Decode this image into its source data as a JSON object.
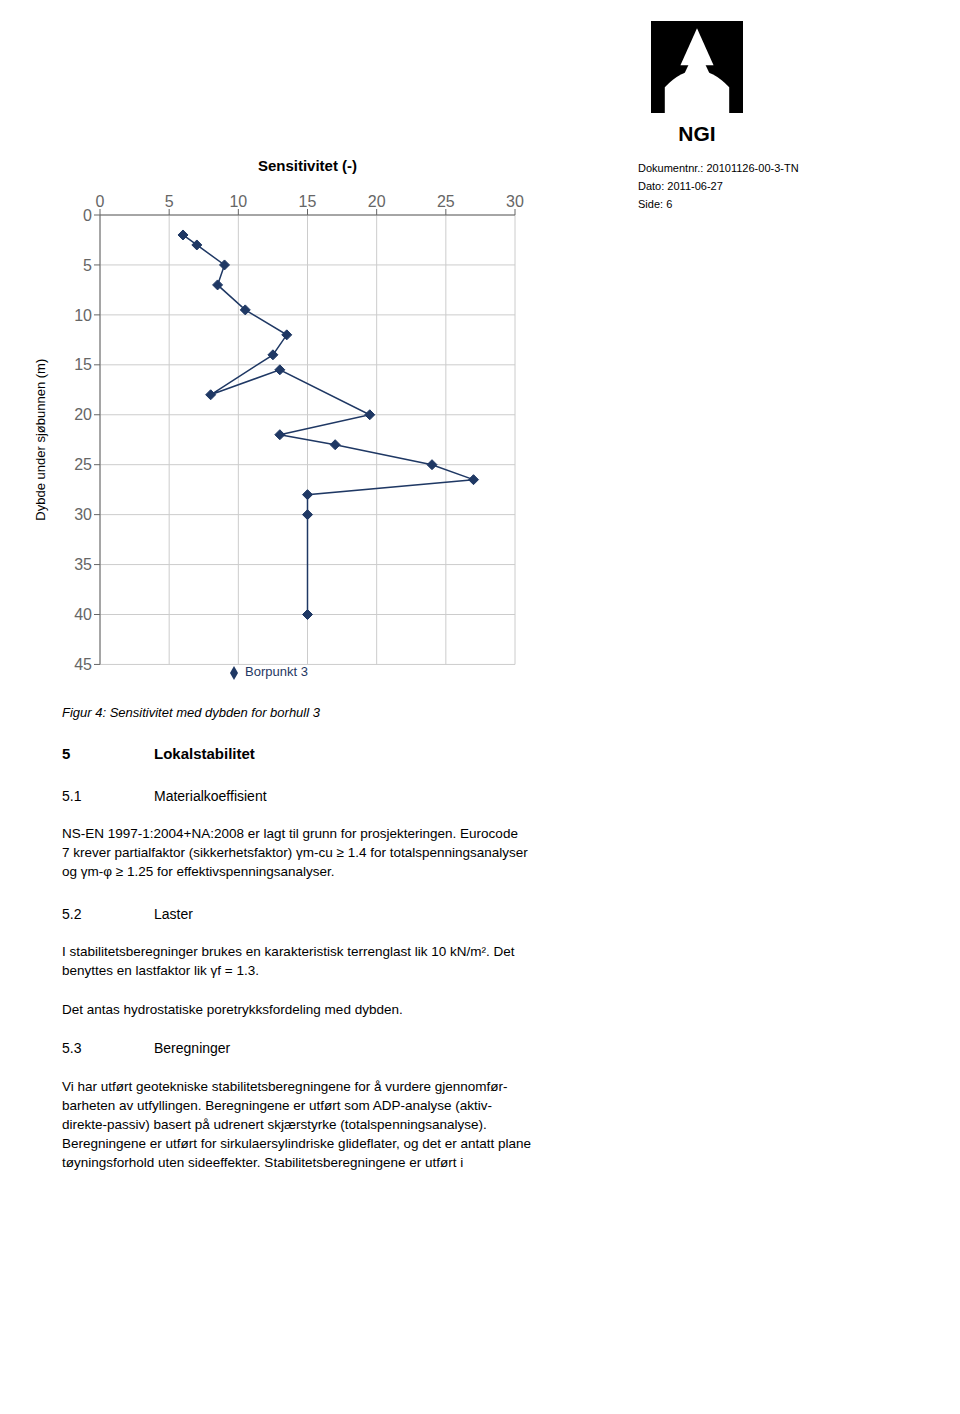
{
  "chart_data": {
    "type": "line",
    "x_label": "Sensitivitet  (-)",
    "y_label": "Dybde under sjøbunnen (m)",
    "xlim": [
      0,
      30
    ],
    "ylim": [
      45,
      0
    ],
    "xticks": [
      0,
      5,
      10,
      15,
      20,
      25,
      30
    ],
    "yticks": [
      0,
      5,
      10,
      15,
      20,
      25,
      30,
      35,
      40,
      45
    ],
    "grid": true,
    "legend": "bottom",
    "series": [
      {
        "name": "Borpunkt 3",
        "color": "#1F3864",
        "marker": "diamond",
        "x": [
          6.0,
          7.0,
          9.0,
          8.5,
          10.5,
          13.5,
          12.5,
          8.0,
          13.0,
          19.5,
          13.0,
          17.0,
          24.0,
          27.0,
          15.0,
          15.0,
          15.0
        ],
        "values": [
          2.0,
          3.0,
          5.0,
          7.0,
          9.5,
          12.0,
          14.0,
          18.0,
          15.5,
          20.0,
          22.0,
          23.0,
          25.0,
          26.5,
          28.0,
          30.0,
          40.0
        ]
      }
    ],
    "annotations": [
      "NGI",
      "Dokumentnr.: 20101126-00-3-TN",
      "Dato: 2011-06-27",
      "Side: 6",
      "Figur 4: Sensitivitet med dybden for borhull 3",
      "5",
      "Lokalstabilitet",
      "5.1",
      "Materialkoeffisient",
      "NS-EN 1997-1:2004+NA:2008 er lagt til grunn for prosjekteringen. Eurocode\n7 krever partialfaktor (sikkerhetsfaktor) γm-cu ≥ 1.4 for totalspenningsanalyser\nog γm-φ ≥ 1.25 for effektivspenningsanalyser.",
      "5.2",
      "Laster",
      "I stabilitetsberegninger brukes en karakteristisk terrenglast lik 10 kN/m². Det\nbenyttes en lastfaktor lik γf = 1.3.",
      "Det antas hydrostatiske poretrykksfordeling med dybden.",
      "5.3",
      "Beregninger",
      "Vi har utført geotekniske stabilitetsberegningene for å vurdere gjennomfør-\nbarheten av utfyllingen. Beregningene er utført som ADP-analyse (aktiv-\ndirekte-passiv) basert på udrenert skjærstyrke (totalspenningsanalyse).\nBeregningene er utført for sirkulaersylindriske glideflater, og det er antatt plane\ntøyningsforhold uten sideeffekter. Stabilitetsberegningene er utført i"
    ]
  }
}
